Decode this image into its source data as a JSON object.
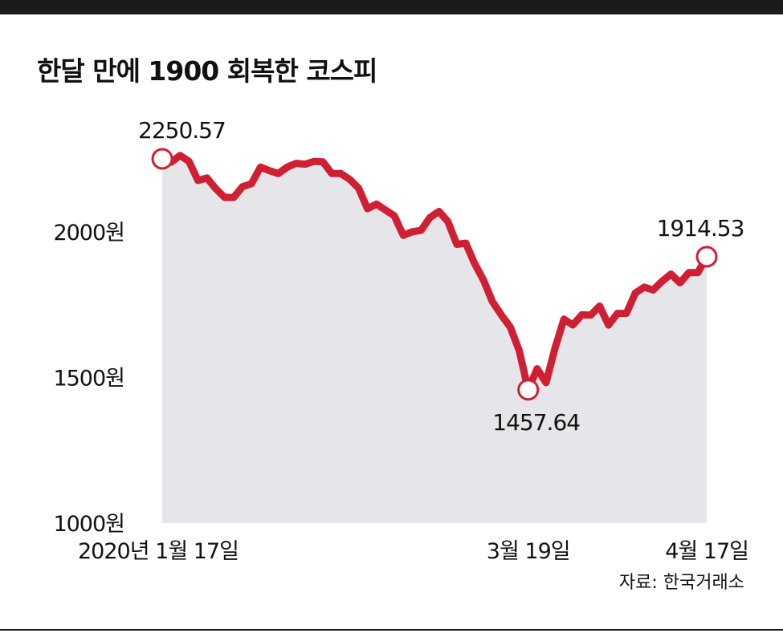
{
  "title": "한달 만에 1900 회복한 코스피",
  "source": "자료: 한국거래소",
  "colors": {
    "line": "#d01f33",
    "area": "#e6e6ea",
    "end_label": "#d01f33",
    "text": "#111111"
  },
  "chart_data": {
    "type": "area",
    "title": "한달 만에 1900 회복한 코스피",
    "ylim": [
      1000,
      2300
    ],
    "y_ticks": [
      {
        "value": 2000,
        "label": "2000원"
      },
      {
        "value": 1500,
        "label": "1500원"
      },
      {
        "value": 1000,
        "label": "1000원"
      }
    ],
    "x_tick_labels": [
      "2020년 1월 17일",
      "3월 19일",
      "4월 17일"
    ],
    "series": [
      {
        "values": [
          2250.57,
          2239,
          2262,
          2242,
          2176,
          2185,
          2148,
          2118,
          2118,
          2155,
          2165,
          2222,
          2210,
          2200,
          2222,
          2235,
          2232,
          2242,
          2240,
          2200,
          2200,
          2180,
          2150,
          2079,
          2095,
          2075,
          2055,
          1988,
          2000,
          2005,
          2049,
          2070,
          2035,
          1957,
          1961,
          1891,
          1834,
          1760,
          1714,
          1672,
          1591,
          1457.64,
          1530,
          1482,
          1600,
          1700,
          1680,
          1715,
          1714,
          1745,
          1680,
          1720,
          1720,
          1790,
          1810,
          1800,
          1830,
          1855,
          1825,
          1860,
          1860,
          1914.53
        ]
      }
    ],
    "annotations": [
      {
        "label": "2250.57",
        "index": 0
      },
      {
        "label": "1457.64",
        "index": 41
      },
      {
        "label": "1914.53",
        "index": 61
      }
    ]
  }
}
